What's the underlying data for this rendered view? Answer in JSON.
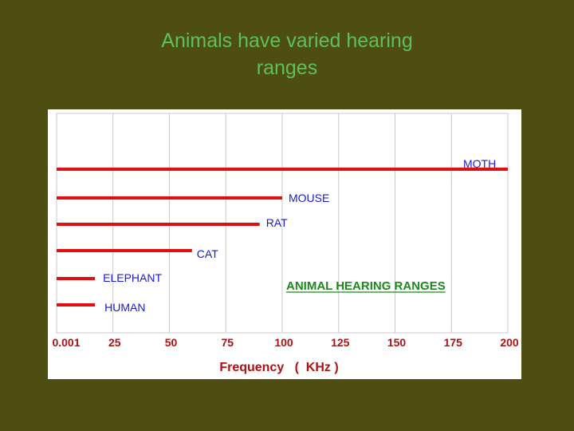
{
  "slide": {
    "title_line1": "Animals have varied hearing",
    "title_line2": "ranges"
  },
  "colors": {
    "background": "#4e4e12",
    "title": "#5cc15c",
    "bar": "#e01010",
    "bar_label": "#1a1ad0",
    "chart_title": "#1a8a1a",
    "tick_label": "#b01010",
    "axis_label": "#b01010",
    "grid": "#c8c8c8"
  },
  "chart_data": {
    "type": "bar",
    "orientation": "horizontal",
    "title": "ANIMAL  HEARING  RANGES",
    "xlabel": "Frequency   (  KHz )",
    "ylabel": "",
    "xlim": [
      0,
      200
    ],
    "grid": true,
    "tick_labels": [
      "0.001",
      "25",
      "50",
      "75",
      "100",
      "125",
      "150",
      "175",
      "200"
    ],
    "tick_values": [
      0,
      25,
      50,
      75,
      100,
      125,
      150,
      175,
      200
    ],
    "series": [
      {
        "name": "MOTH",
        "min": 0.001,
        "max": 200
      },
      {
        "name": "MOUSE",
        "min": 0.001,
        "max": 100
      },
      {
        "name": "RAT",
        "min": 0.001,
        "max": 90
      },
      {
        "name": "CAT",
        "min": 0.001,
        "max": 60
      },
      {
        "name": "ELEPHANT",
        "min": 0.001,
        "max": 17
      },
      {
        "name": "HUMAN",
        "min": 0.001,
        "max": 17
      }
    ]
  }
}
